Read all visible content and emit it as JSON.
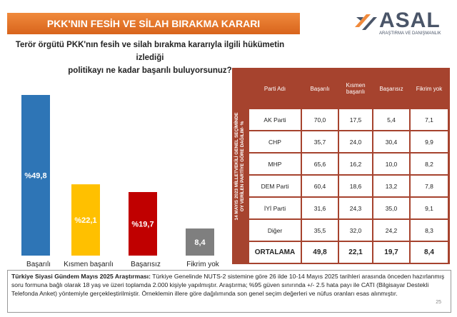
{
  "header": {
    "title": "PKK'NIN FESİH VE SİLAH BIRAKMA KARARI",
    "logo": "ASAL",
    "logo_sub": "ARAŞTIRMA VE DANIŞMANLIK"
  },
  "question": [
    "Terör örgütü PKK'nın fesih ve silah bırakma kararıyla ilgili hükümetin izlediği",
    "politikayı ne kadar başarılı buluyorsunuz?"
  ],
  "chart_data": {
    "type": "bar",
    "categories": [
      "Başarılı",
      "Kısmen başarılı",
      "Başarısız",
      "Fikrim yok"
    ],
    "values": [
      49.8,
      22.1,
      19.7,
      8.4
    ],
    "value_labels": [
      "%49,8",
      "%22,1",
      "%19,7",
      "8,4"
    ],
    "colors": [
      "#2e75b6",
      "#ffc000",
      "#c00000",
      "#7f7f7f"
    ]
  },
  "table": {
    "side_label": [
      "14 MAYIS 2023 MİLLETVEKİLİ GENEL SEÇİMİNDE",
      "OY VERİLEN PARTİYE GÖRE DAĞILIM- %"
    ],
    "header": [
      "Parti Adı",
      "Başarılı",
      "Kısmen başarılı",
      "Başarısız",
      "Fikrim yok"
    ],
    "rows": [
      [
        "AK Parti",
        "70,0",
        "17,5",
        "5,4",
        "7,1"
      ],
      [
        "CHP",
        "35,7",
        "24,0",
        "30,4",
        "9,9"
      ],
      [
        "MHP",
        "65,6",
        "16,2",
        "10,0",
        "8,2"
      ],
      [
        "DEM Parti",
        "60,4",
        "18,6",
        "13,2",
        "7,8"
      ],
      [
        "İYİ Parti",
        "31,6",
        "24,3",
        "35,0",
        "9,1"
      ],
      [
        "Diğer",
        "35,5",
        "32,0",
        "24,2",
        "8,3"
      ],
      [
        "ORTALAMA",
        "49,8",
        "22,1",
        "19,7",
        "8,4"
      ]
    ]
  },
  "footnote": {
    "label": "Türkiye Siyasi Gündem Mayıs 2025 Araştırması:",
    "text": "Türkiye Genelinde NUTS-2 sistemine göre 26 ilde 10-14 Mayıs 2025 tarihleri arasında önceden hazırlanmış soru formuna bağlı olarak 18 yaş ve üzeri toplamda 2.000 kişiyle yapılmıştır. Araştırma; %95 güven sınırında +/- 2.5 hata payı ile CATI (Bilgisayar Destekli Telefonda Anket) yöntemiyle gerçekleştirilmiştir. Örneklemin illere göre dağılımında son genel seçim değerleri ve nüfus oranları esas alınmıştır.",
    "page": "25"
  }
}
